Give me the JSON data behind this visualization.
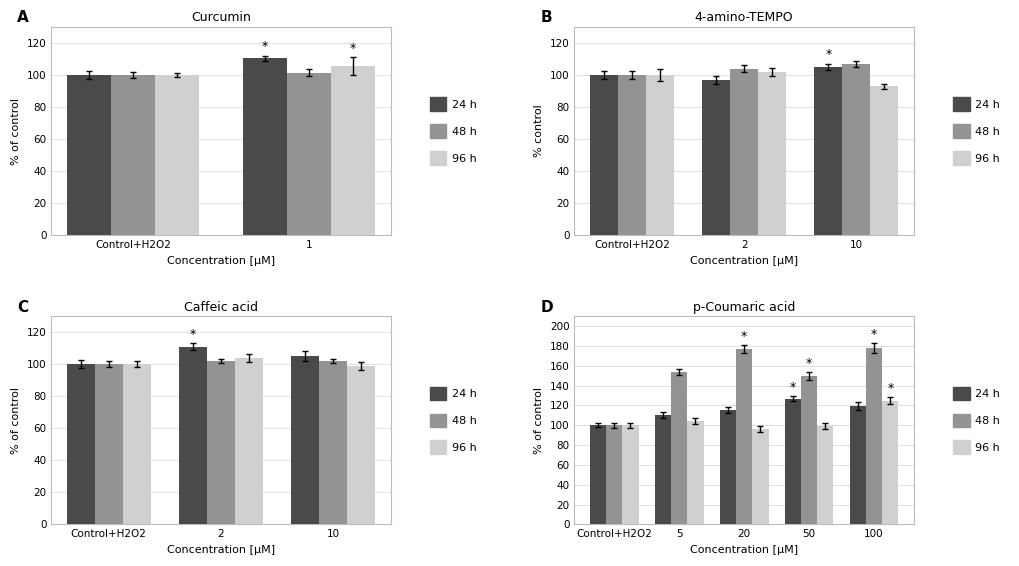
{
  "panels": [
    {
      "label": "A",
      "title": "Curcumin",
      "ylabel": "% of control",
      "xlabel": "Concentration [μM]",
      "ylim": [
        0,
        130
      ],
      "yticks": [
        0,
        20,
        40,
        60,
        80,
        100,
        120
      ],
      "groups": [
        "Control+H2O2",
        "1"
      ],
      "values_24h": [
        100.0,
        110.5
      ],
      "values_48h": [
        100.0,
        101.5
      ],
      "values_96h": [
        100.0,
        105.5
      ],
      "err_24h": [
        2.5,
        1.5
      ],
      "err_48h": [
        2.0,
        2.0
      ],
      "err_96h": [
        1.5,
        5.5
      ],
      "stars": [
        {
          "group": 1,
          "series": "24h",
          "text": "*"
        },
        {
          "group": 1,
          "series": "96h",
          "text": "*"
        }
      ]
    },
    {
      "label": "B",
      "title": "4-amino-TEMPO",
      "ylabel": "% control",
      "xlabel": "Concentration [μM]",
      "ylim": [
        0,
        130
      ],
      "yticks": [
        0,
        20,
        40,
        60,
        80,
        100,
        120
      ],
      "groups": [
        "Control+H2O2",
        "2",
        "10"
      ],
      "values_24h": [
        100.0,
        97.0,
        105.0
      ],
      "values_48h": [
        100.0,
        104.0,
        107.0
      ],
      "values_96h": [
        100.0,
        102.0,
        93.0
      ],
      "err_24h": [
        2.5,
        2.5,
        2.0
      ],
      "err_48h": [
        2.5,
        2.0,
        2.0
      ],
      "err_96h": [
        4.0,
        2.5,
        1.5
      ],
      "stars": [
        {
          "group": 2,
          "series": "24h",
          "text": "*"
        }
      ]
    },
    {
      "label": "C",
      "title": "Caffeic acid",
      "ylabel": "% of control",
      "xlabel": "Concentration [μM]",
      "ylim": [
        0,
        130
      ],
      "yticks": [
        0,
        20,
        40,
        60,
        80,
        100,
        120
      ],
      "groups": [
        "Control+H2O2",
        "2",
        "10"
      ],
      "values_24h": [
        100.0,
        111.0,
        105.0
      ],
      "values_48h": [
        100.0,
        102.0,
        102.0
      ],
      "values_96h": [
        100.0,
        104.0,
        99.0
      ],
      "err_24h": [
        2.5,
        2.0,
        3.0
      ],
      "err_48h": [
        2.0,
        1.5,
        1.5
      ],
      "err_96h": [
        2.0,
        2.5,
        2.5
      ],
      "stars": [
        {
          "group": 1,
          "series": "24h",
          "text": "*"
        }
      ]
    },
    {
      "label": "D",
      "title": "p-Coumaric acid",
      "ylabel": "% of control",
      "xlabel": "Concentration [μM]",
      "ylim": [
        0,
        210
      ],
      "yticks": [
        0,
        20,
        40,
        60,
        80,
        100,
        120,
        140,
        160,
        180,
        200
      ],
      "groups": [
        "Control+H2O2",
        "5",
        "20",
        "50",
        "100"
      ],
      "values_24h": [
        100.0,
        110.0,
        115.0,
        127.0,
        119.0
      ],
      "values_48h": [
        100.0,
        154.0,
        177.0,
        150.0,
        178.0
      ],
      "values_96h": [
        100.0,
        104.0,
        96.0,
        99.0,
        125.0
      ],
      "err_24h": [
        2.0,
        3.0,
        3.0,
        3.0,
        4.0
      ],
      "err_48h": [
        2.5,
        3.0,
        4.0,
        4.0,
        5.0
      ],
      "err_96h": [
        2.5,
        3.0,
        3.0,
        3.0,
        4.0
      ],
      "stars": [
        {
          "group": 2,
          "series": "48h",
          "text": "*"
        },
        {
          "group": 3,
          "series": "24h",
          "text": "*"
        },
        {
          "group": 3,
          "series": "48h",
          "text": "*"
        },
        {
          "group": 4,
          "series": "48h",
          "text": "*"
        },
        {
          "group": 4,
          "series": "96h",
          "text": "*"
        }
      ]
    }
  ],
  "color_24h": "#4a4a4a",
  "color_48h": "#939393",
  "color_96h": "#d0d0d0",
  "bar_width": 0.25,
  "background_color": "#ffffff",
  "legend_labels": [
    "24 h",
    "48 h",
    "96 h"
  ]
}
